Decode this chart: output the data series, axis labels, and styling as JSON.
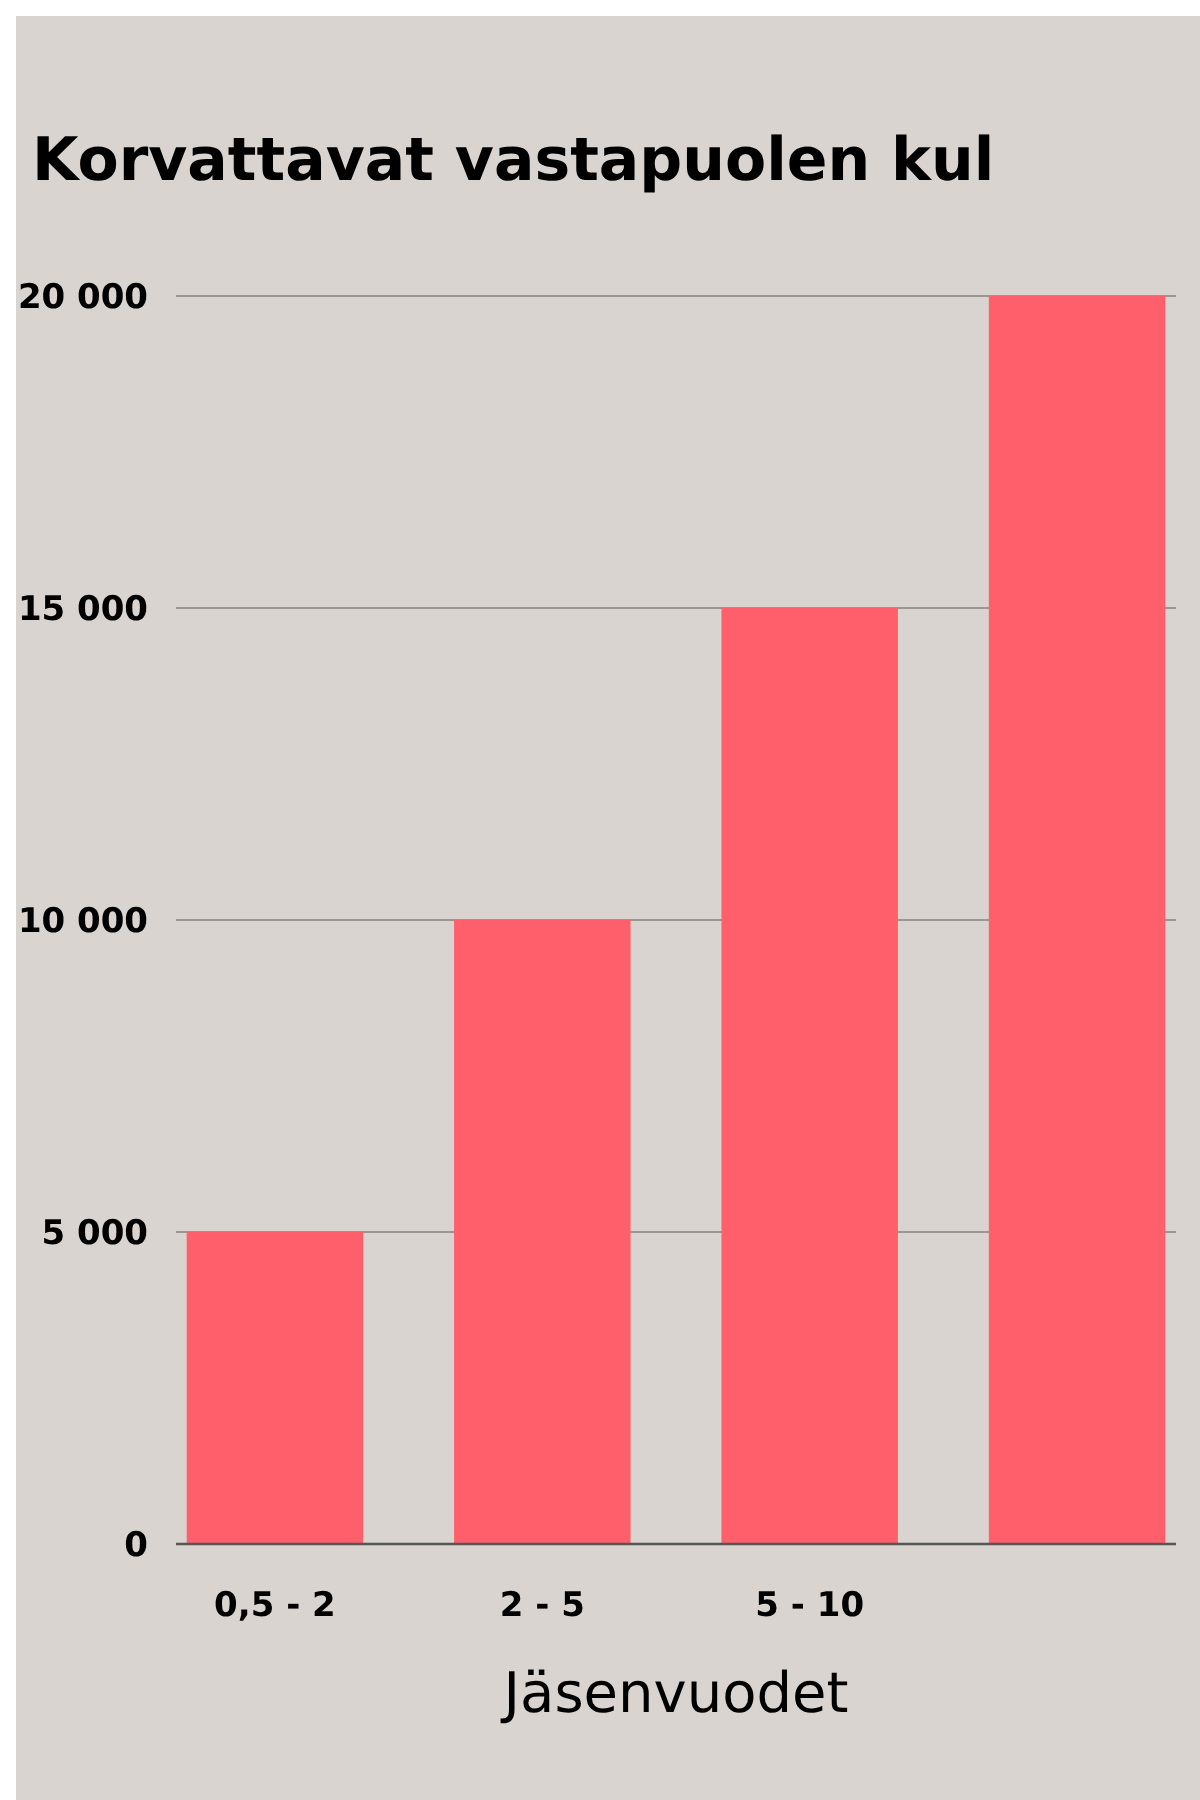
{
  "chart_data": {
    "type": "bar",
    "title": "Korvattavat vastapuolen kul",
    "categories": [
      "0,5 - 2",
      "2 - 5",
      "5 - 10",
      null
    ],
    "values": [
      5000,
      10000,
      15000,
      20000
    ],
    "color": "#fe5f6b",
    "xlabel": "Jäsenvuodet",
    "ylim": [
      0,
      20000
    ],
    "yticks": [
      0,
      {
        "value": 5000,
        "label": "5 000"
      },
      {
        "value": 10000,
        "label": "10 000"
      },
      {
        "value": 15000,
        "label": "15 000"
      },
      {
        "value": 20000,
        "label": "20 000"
      }
    ],
    "grid": "y"
  }
}
